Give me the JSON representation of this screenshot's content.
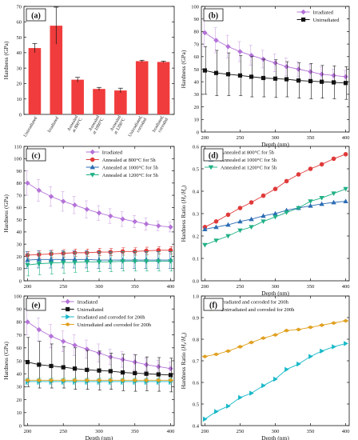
{
  "chart_data": [
    {
      "panel": "(a)",
      "type": "bar",
      "ylabel": "Hardness (GPa)",
      "ylim": [
        0,
        70
      ],
      "yticks": [
        0,
        10,
        20,
        30,
        40,
        50,
        60,
        70
      ],
      "categories": [
        "Unirradiated",
        "Irradiated",
        "Annealed at 800°C",
        "Annealed at 1000°C",
        "Annealed at 1200°C",
        "Unirradiated, corroded",
        "Irradiated, corroded"
      ],
      "values": [
        43,
        57.5,
        22.5,
        16.5,
        15.5,
        34.5,
        34
      ],
      "errors": [
        3,
        12,
        1.5,
        1,
        1.5,
        0.6,
        0.5
      ],
      "colors": {
        "bar": "#f03c3c"
      }
    },
    {
      "panel": "(b)",
      "type": "line",
      "xlabel": "Depth (nm)",
      "ylabel": "Hardness (GPa)",
      "xlim": [
        195,
        405
      ],
      "ylim": [
        0,
        100
      ],
      "xticks": [
        200,
        250,
        300,
        350,
        400
      ],
      "yticks": [
        0,
        10,
        20,
        30,
        40,
        50,
        60,
        70,
        80,
        90,
        100
      ],
      "x": [
        200,
        216,
        233,
        250,
        266,
        283,
        300,
        316,
        333,
        350,
        366,
        383,
        400
      ],
      "series": [
        {
          "name": "Irradiated",
          "marker": "diamond",
          "color": "#b472d8",
          "errcolor": "#cfa8e6",
          "values": [
            79,
            73,
            68,
            64,
            61,
            58,
            55,
            52,
            50,
            48,
            46,
            45,
            44
          ],
          "errors": [
            11,
            10,
            9,
            8,
            8,
            7,
            7,
            7,
            6,
            6,
            6,
            5,
            5
          ]
        },
        {
          "name": "Unirradiated",
          "marker": "square",
          "color": "#111111",
          "errcolor": "#111111",
          "values": [
            49,
            47,
            46,
            45,
            44,
            43,
            42.5,
            42,
            41,
            40.5,
            40,
            39.5,
            39
          ],
          "errors": [
            19,
            18,
            17,
            16,
            16,
            15,
            15,
            14,
            14,
            14,
            13,
            13,
            13
          ]
        }
      ],
      "legend": "top-right"
    },
    {
      "panel": "(c)",
      "type": "line",
      "ylabel": "Hardness (GPa)",
      "xlim": [
        195,
        405
      ],
      "ylim": [
        0,
        110
      ],
      "xticks": [
        200,
        250,
        300,
        350,
        400
      ],
      "yticks": [
        0,
        10,
        20,
        30,
        40,
        50,
        60,
        70,
        80,
        90,
        100,
        110
      ],
      "x": [
        200,
        216,
        233,
        250,
        266,
        283,
        300,
        316,
        333,
        350,
        366,
        383,
        400
      ],
      "series": [
        {
          "name": "Irradiated",
          "marker": "diamond",
          "color": "#b472d8",
          "errcolor": "#cfa8e6",
          "values": [
            80,
            74,
            69,
            65,
            62,
            58.5,
            55.5,
            53,
            50.5,
            48.5,
            46.5,
            45,
            44
          ],
          "errors": [
            10,
            9,
            8,
            8,
            7,
            7,
            6,
            6,
            6,
            5,
            5,
            4,
            4
          ]
        },
        {
          "name": "Annealed at 800°C for 5h",
          "marker": "circle",
          "color": "#e03a3a",
          "errcolor": "#e03a3a",
          "values": [
            21,
            21.5,
            22,
            22.5,
            23,
            23,
            23.5,
            23.5,
            24,
            24,
            24.5,
            25,
            25
          ],
          "errors": [
            3,
            3,
            3,
            3,
            3,
            3,
            3,
            3,
            3,
            3,
            3,
            3,
            3
          ]
        },
        {
          "name": "Annealed at 1000°C for 5h",
          "marker": "triangle",
          "color": "#2b6cb3",
          "errcolor": "#2b6cb3",
          "values": [
            17,
            17.5,
            17.5,
            17.5,
            17.5,
            17.5,
            17,
            17,
            17,
            17,
            17,
            17,
            17
          ],
          "errors": [
            7,
            7,
            7,
            7,
            7,
            7,
            7,
            7,
            7,
            7,
            7,
            7,
            7
          ]
        },
        {
          "name": "Annealed at 1200°C for 5h",
          "marker": "triangle-down",
          "color": "#1fb085",
          "errcolor": "#1fb085",
          "values": [
            13,
            14,
            14.5,
            15,
            15,
            15.5,
            15.5,
            15.5,
            16,
            16,
            16,
            16,
            16
          ],
          "errors": [
            9,
            9,
            9,
            9,
            8,
            8,
            8,
            8,
            8,
            8,
            8,
            8,
            8
          ]
        }
      ],
      "legend": "top-right"
    },
    {
      "panel": "(d)",
      "type": "line",
      "xlabel": "Depth (nm)",
      "ylabel": "Hardness Ratio (Hr/Hu)",
      "xlim": [
        195,
        405
      ],
      "ylim": [
        0,
        0.6
      ],
      "xticks": [
        200,
        250,
        300,
        350,
        400
      ],
      "yticks": [
        0.0,
        0.1,
        0.2,
        0.3,
        0.4,
        0.5,
        0.6
      ],
      "x": [
        200,
        216,
        233,
        250,
        266,
        283,
        300,
        316,
        333,
        350,
        366,
        383,
        400
      ],
      "series": [
        {
          "name": "Annealed at 800°C for 5h",
          "marker": "circle",
          "color": "#e03a3a",
          "values": [
            0.24,
            0.265,
            0.295,
            0.325,
            0.35,
            0.38,
            0.41,
            0.445,
            0.475,
            0.5,
            0.52,
            0.545,
            0.565
          ]
        },
        {
          "name": "Annealed at 1000°C for 5h",
          "marker": "triangle",
          "color": "#2b6cb3",
          "values": [
            0.23,
            0.24,
            0.25,
            0.265,
            0.275,
            0.29,
            0.3,
            0.315,
            0.325,
            0.335,
            0.343,
            0.35,
            0.355
          ]
        },
        {
          "name": "Annealed at 1200°C for 5h",
          "marker": "triangle-down",
          "color": "#1fb085",
          "values": [
            0.16,
            0.18,
            0.2,
            0.225,
            0.24,
            0.265,
            0.285,
            0.305,
            0.325,
            0.355,
            0.37,
            0.39,
            0.41
          ]
        }
      ],
      "legend": "top-left"
    },
    {
      "panel": "(e)",
      "type": "line",
      "xlabel": "Depth (nm)",
      "ylabel": "Hardness (GPa)",
      "xlim": [
        195,
        405
      ],
      "ylim": [
        0,
        100
      ],
      "xticks": [
        200,
        250,
        300,
        350,
        400
      ],
      "yticks": [
        0,
        10,
        20,
        30,
        40,
        50,
        60,
        70,
        80,
        90,
        100
      ],
      "x": [
        200,
        216,
        233,
        250,
        266,
        283,
        300,
        316,
        333,
        350,
        366,
        383,
        400
      ],
      "series": [
        {
          "name": "Irradiated",
          "marker": "diamond",
          "color": "#b472d8",
          "errcolor": "#cfa8e6",
          "values": [
            80,
            74,
            69,
            65,
            62,
            59,
            56,
            53,
            51,
            49,
            47,
            45.5,
            44
          ],
          "errors": [
            10,
            9,
            9,
            8,
            8,
            7,
            7,
            6,
            6,
            6,
            5,
            5,
            5
          ]
        },
        {
          "name": "Unirradiated",
          "marker": "square",
          "color": "#111111",
          "errcolor": "#111111",
          "values": [
            49,
            47,
            46,
            45,
            44,
            43,
            42.5,
            42,
            41,
            40.5,
            40,
            39.5,
            39
          ],
          "errors": [
            19,
            18,
            17,
            16,
            16,
            15,
            15,
            14,
            14,
            14,
            13,
            13,
            13
          ]
        },
        {
          "name": "Irradiated and corroded for 200h",
          "marker": "triangle-right",
          "color": "#16b8c8",
          "errcolor": "#16b8c8",
          "values": [
            34,
            34,
            34,
            34,
            34,
            34,
            34,
            34,
            34,
            34,
            34,
            34,
            34
          ],
          "errors": [
            2,
            2,
            2,
            2,
            2,
            2,
            2,
            2,
            2,
            2,
            2,
            2,
            2
          ]
        },
        {
          "name": "Unirradiated and corroded for 200h",
          "marker": "diamond-h",
          "color": "#e0a020",
          "errcolor": "#1fb085",
          "values": [
            35,
            35,
            35,
            35,
            35,
            35,
            35,
            35,
            35,
            35,
            35,
            35,
            35
          ],
          "errors": [
            1.5,
            1.5,
            1.5,
            1.5,
            1.5,
            1.5,
            1.5,
            1.5,
            1.5,
            1.5,
            1.5,
            1.5,
            1.5
          ]
        }
      ],
      "legend": "top-right"
    },
    {
      "panel": "(f)",
      "type": "line",
      "xlabel": "Depth (nm)",
      "ylabel": "Hardness Ratio (Hr/Hu)",
      "xlim": [
        195,
        405
      ],
      "ylim": [
        0.4,
        1.0
      ],
      "xticks": [
        200,
        250,
        300,
        350,
        400
      ],
      "yticks": [
        0.4,
        0.5,
        0.6,
        0.7,
        0.8,
        0.9,
        1.0
      ],
      "x": [
        200,
        216,
        233,
        250,
        266,
        283,
        300,
        316,
        333,
        350,
        366,
        383,
        400
      ],
      "series": [
        {
          "name": "Irradiated and corroded for 200h",
          "marker": "triangle-right",
          "color": "#16b8c8",
          "values": [
            0.43,
            0.465,
            0.49,
            0.53,
            0.55,
            0.585,
            0.615,
            0.66,
            0.685,
            0.72,
            0.745,
            0.765,
            0.78
          ]
        },
        {
          "name": "Unirradiated and corroded for 200h",
          "marker": "diamond-h",
          "color": "#e0a020",
          "values": [
            0.72,
            0.73,
            0.745,
            0.765,
            0.785,
            0.805,
            0.82,
            0.84,
            0.845,
            0.855,
            0.865,
            0.875,
            0.885
          ]
        }
      ],
      "legend": "top-left"
    }
  ]
}
